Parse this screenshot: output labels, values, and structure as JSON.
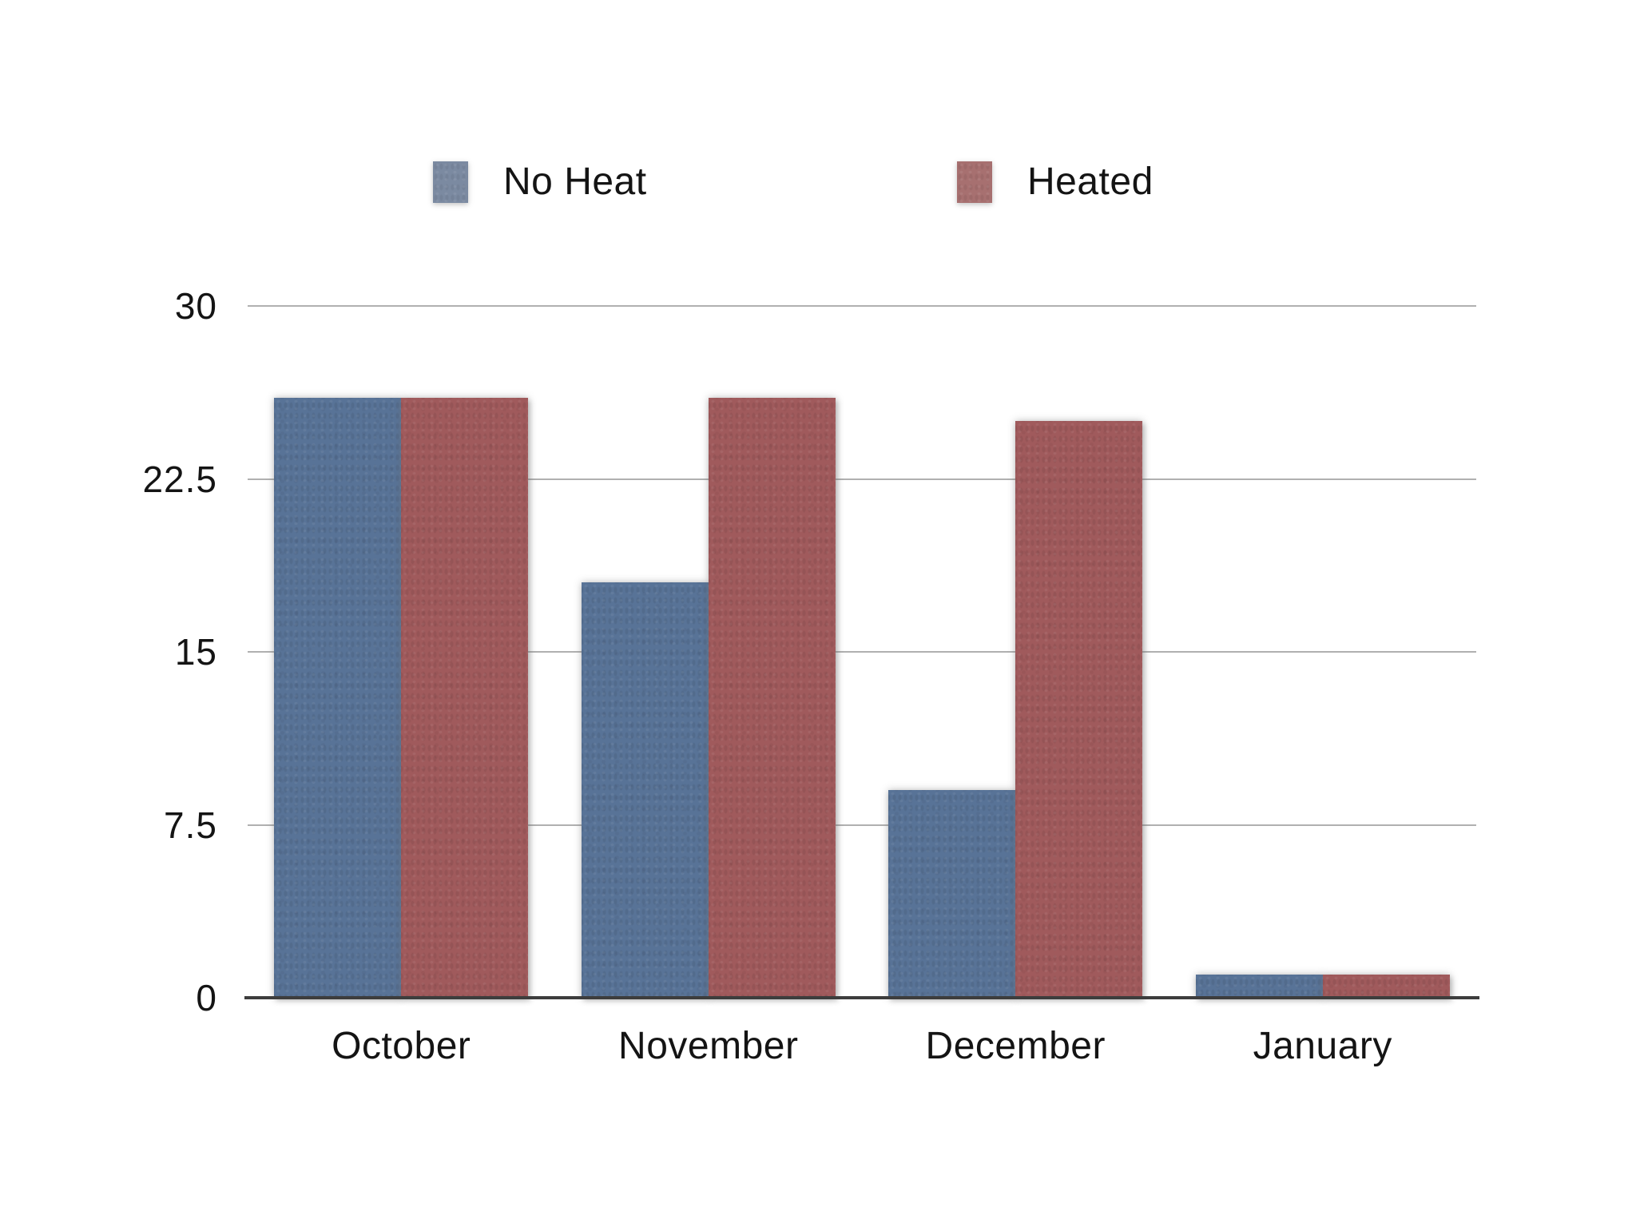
{
  "chart_data": {
    "type": "bar",
    "title": "",
    "xlabel": "",
    "ylabel": "",
    "categories": [
      "October",
      "November",
      "December",
      "January"
    ],
    "series": [
      {
        "name": "No Heat",
        "values": [
          26,
          18,
          9,
          1
        ],
        "color": "#587397",
        "legend_color": "#7b8aa1"
      },
      {
        "name": "Heated",
        "values": [
          26,
          26,
          25,
          1
        ],
        "color": "#a05a5c",
        "legend_color": "#a77070"
      }
    ],
    "ylim": [
      0,
      30
    ],
    "yticks": [
      "0",
      "7.5",
      "15",
      "22.5",
      "30"
    ],
    "grid": "horizontal",
    "legend_position": "top",
    "colors": {
      "background": "#ffffff",
      "gridline": "#b0b0b0",
      "axis_line": "#3d3d3d",
      "text": "#141414"
    }
  }
}
